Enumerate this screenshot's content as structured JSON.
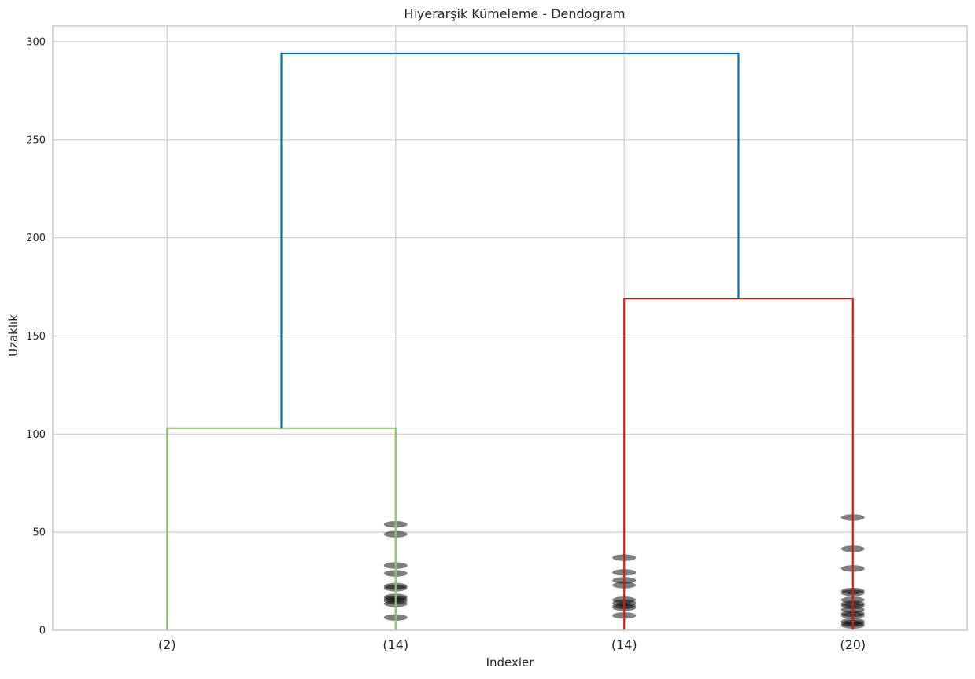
{
  "chart_data": {
    "type": "dendrogram",
    "title": "Hiyerarşik Kümeleme - Dendogram",
    "xlabel": "Indexler",
    "ylabel": "Uzaklık",
    "ylim": [
      0,
      308
    ],
    "yticks": [
      0,
      50,
      100,
      150,
      200,
      250,
      300
    ],
    "grid": true,
    "leaves": [
      {
        "label": "(2)",
        "contracted_heights": []
      },
      {
        "label": "(14)",
        "contracted_heights": [
          54,
          49,
          33,
          29,
          22.5,
          21.5,
          17,
          16,
          15,
          13.5,
          6.5
        ]
      },
      {
        "label": "(14)",
        "contracted_heights": [
          37,
          29.5,
          25.5,
          23,
          15.5,
          14,
          12.5,
          11.5,
          7.5
        ]
      },
      {
        "label": "(20)",
        "contracted_heights": [
          57.5,
          41.5,
          31.5,
          20,
          19,
          15.5,
          13.5,
          12.5,
          10.5,
          8.5,
          7.5,
          4.5,
          3.5,
          2.5
        ]
      }
    ],
    "links": [
      {
        "left": "leaf:0",
        "right": "leaf:1",
        "height": 103,
        "color": "#8fc070"
      },
      {
        "left": "leaf:2",
        "right": "leaf:3",
        "height": 169,
        "color": "#c91f16"
      },
      {
        "left": "link:0",
        "right": "link:1",
        "height": 294,
        "color": "#0072b2"
      }
    ],
    "colors": {
      "grid": "#cccccc",
      "axes": "#cccccc",
      "marker": "#000000"
    }
  }
}
